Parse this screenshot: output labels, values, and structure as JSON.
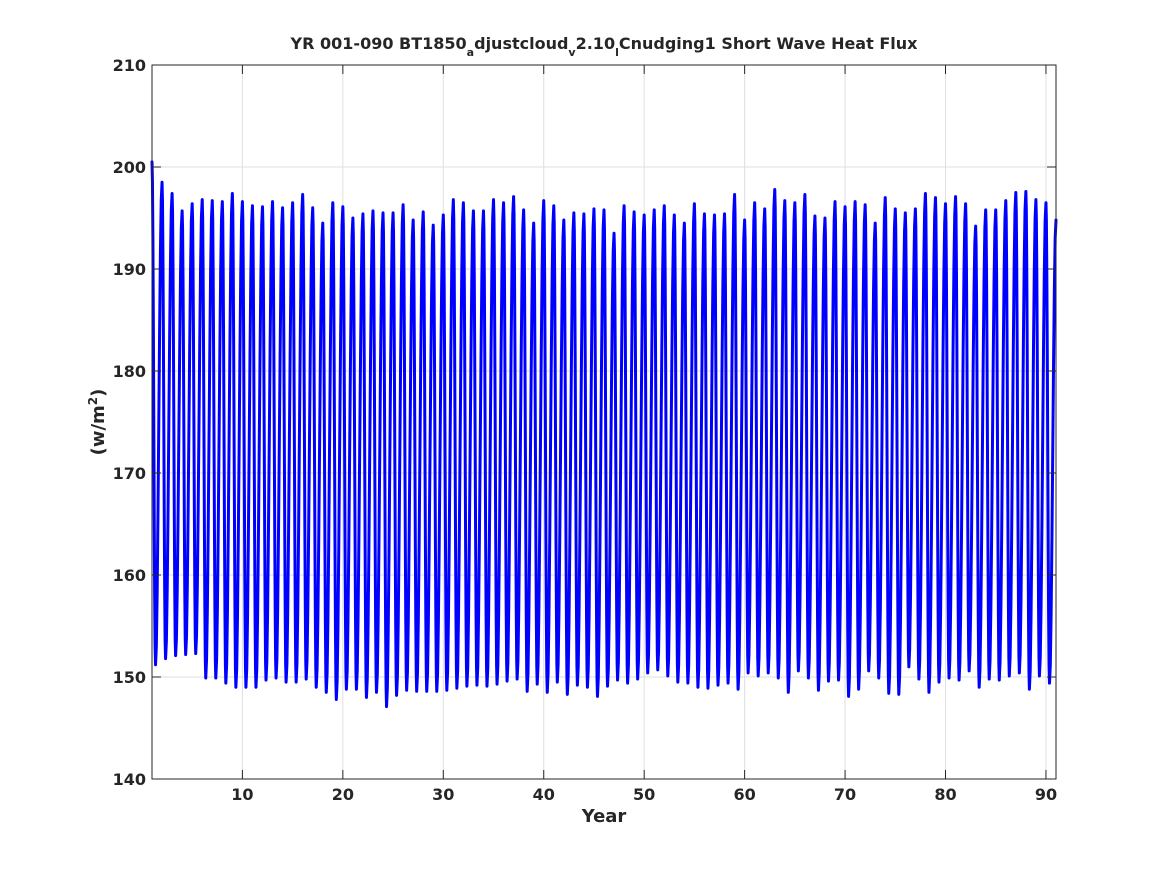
{
  "chart_data": {
    "type": "line",
    "title": {
      "parts": [
        {
          "text": "YR 001-090 BT1850",
          "sub": false
        },
        {
          "text": "a",
          "sub": true
        },
        {
          "text": "djustcloud",
          "sub": false
        },
        {
          "text": "v",
          "sub": true
        },
        {
          "text": "2.10",
          "sub": false
        },
        {
          "text": "l",
          "sub": true
        },
        {
          "text": "Cnudging1 Short Wave Heat Flux",
          "sub": false
        }
      ]
    },
    "xlabel": "Year",
    "ylabel": {
      "base": "(w/m",
      "sup": "2",
      "close": ")"
    },
    "xlim": [
      1,
      91
    ],
    "ylim": [
      140,
      210
    ],
    "xticks": [
      10,
      20,
      30,
      40,
      50,
      60,
      70,
      80,
      90
    ],
    "yticks": [
      140,
      150,
      160,
      170,
      180,
      190,
      200,
      210
    ],
    "grid": true,
    "series": [
      {
        "color": "#0000ff",
        "cycle_start_year": 1,
        "cycle_start_value": 200.5,
        "annual_maxima": [
          200.5,
          198.5,
          197.4,
          195.7,
          196.4,
          196.8,
          196.7,
          196.6,
          197.4,
          196.6,
          196.2,
          196.1,
          196.6,
          196.0,
          196.5,
          197.3,
          196.0,
          194.5,
          196.5,
          196.1,
          195.0,
          195.4,
          195.7,
          195.5,
          195.5,
          196.3,
          194.8,
          195.6,
          194.3,
          195.3,
          196.8,
          196.5,
          195.7,
          195.7,
          196.8,
          196.5,
          197.1,
          195.8,
          194.5,
          196.7,
          196.2,
          194.8,
          195.5,
          195.4,
          195.9,
          195.8,
          193.5,
          196.2,
          195.6,
          195.3,
          195.8,
          196.2,
          195.3,
          194.5,
          196.4,
          195.4,
          195.3,
          195.4,
          197.3,
          194.8,
          196.5,
          195.9,
          197.8,
          196.7,
          196.5,
          197.3,
          195.2,
          195.0,
          196.6,
          196.1,
          196.6,
          196.3,
          194.5,
          197.0,
          195.9,
          195.5,
          195.9,
          197.4,
          197.0,
          196.4,
          197.1,
          196.4,
          194.2,
          195.8,
          195.8,
          196.7,
          197.5,
          197.6,
          196.8,
          196.5
        ],
        "annual_minima": [
          151.2,
          151.8,
          152.1,
          152.2,
          152.3,
          149.9,
          149.9,
          149.4,
          149.0,
          149.0,
          149.0,
          149.7,
          149.9,
          149.5,
          149.5,
          149.8,
          149.0,
          148.5,
          147.8,
          148.8,
          148.8,
          148.0,
          148.5,
          147.1,
          148.2,
          148.7,
          148.6,
          148.6,
          148.6,
          148.7,
          148.9,
          149.1,
          149.2,
          149.1,
          149.3,
          149.6,
          149.8,
          148.6,
          149.3,
          148.5,
          149.5,
          148.3,
          149.2,
          149.0,
          148.1,
          149.1,
          149.7,
          149.4,
          149.8,
          150.4,
          150.7,
          150.1,
          149.5,
          149.4,
          149.0,
          148.9,
          149.2,
          149.4,
          148.8,
          150.4,
          150.1,
          150.4,
          149.9,
          148.5,
          150.6,
          149.9,
          148.7,
          149.6,
          149.7,
          148.1,
          148.8,
          150.6,
          149.9,
          148.4,
          148.3,
          151.0,
          149.8,
          148.5,
          149.5,
          149.9,
          149.7,
          150.6,
          149.0,
          149.8,
          149.7,
          150.1,
          150.4,
          148.8,
          150.1,
          149.4
        ],
        "end_year": 91,
        "end_value": 194.8
      }
    ]
  }
}
